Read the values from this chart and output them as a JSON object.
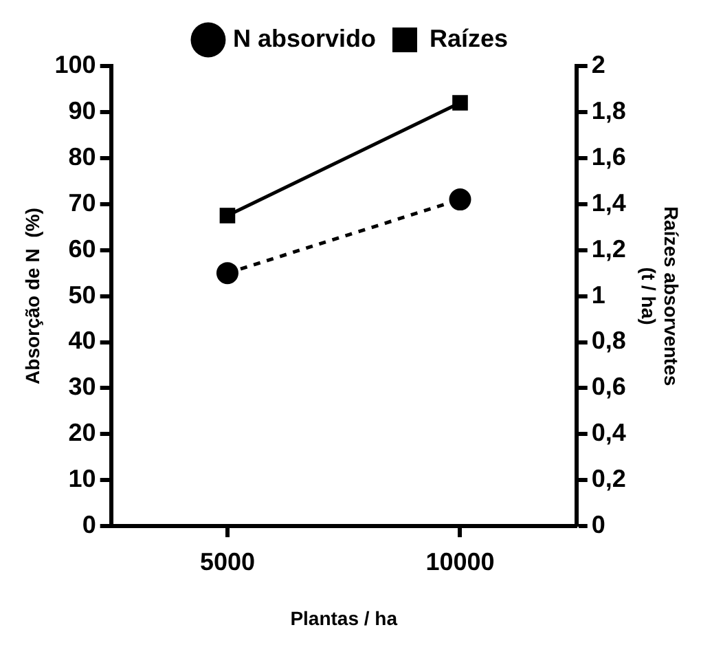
{
  "chart_data": {
    "type": "line",
    "xlabel": "Plantas / ha",
    "ylabel": "Absorção de N  (%)",
    "y2label": "Raízes absorventes\n(t / ha)",
    "categories": [
      "5000",
      "10000"
    ],
    "series": [
      {
        "name": "N absorvido",
        "color": "#000000",
        "values": [
          55,
          71
        ],
        "marker": "circle",
        "line_style": "dashed"
      },
      {
        "name": "Raízes",
        "color": "#000000",
        "values": [
          1.35,
          1.84
        ],
        "axis": "y2",
        "marker": "square",
        "line_style": "solid"
      }
    ],
    "ylim": [
      0,
      100
    ],
    "yticks": [
      0,
      10,
      20,
      30,
      40,
      50,
      60,
      70,
      80,
      90,
      100
    ],
    "y2lim": [
      0,
      2
    ],
    "y2ticks": [
      0,
      {
        "value": 0.2,
        "label": "0,2"
      },
      {
        "value": 0.4,
        "label": "0,4"
      },
      {
        "value": 0.6,
        "label": "0,6"
      },
      {
        "value": 0.8,
        "label": "0,8"
      },
      1,
      {
        "value": 1.2,
        "label": "1,2"
      },
      {
        "value": 1.4,
        "label": "1,4"
      },
      {
        "value": 1.6,
        "label": "1,6"
      },
      {
        "value": 1.8,
        "label": "1,8"
      },
      2
    ],
    "grid": false,
    "legend": "top"
  }
}
